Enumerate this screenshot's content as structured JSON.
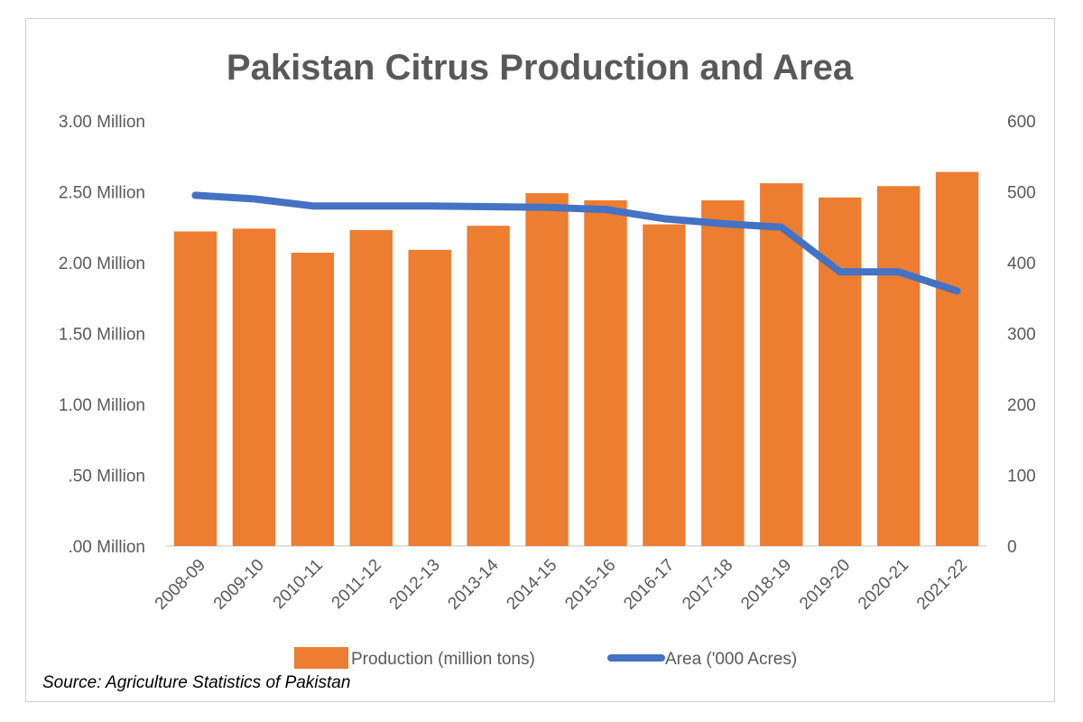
{
  "chart_data": {
    "type": "bar",
    "title": "Pakistan Citrus Production and Area",
    "categories": [
      "2008-09",
      "2009-10",
      "2010-11",
      "2011-12",
      "2012-13",
      "2013-14",
      "2014-15",
      "2015-16",
      "2016-17",
      "2017-18",
      "2018-19",
      "2019-20",
      "2020-21",
      "2021-22"
    ],
    "series": [
      {
        "name": "Production (million tons)",
        "type": "bar",
        "axis": "left",
        "color": "#ED7D31",
        "values": [
          2.22,
          2.24,
          2.07,
          2.23,
          2.09,
          2.26,
          2.49,
          2.44,
          2.27,
          2.44,
          2.56,
          2.46,
          2.54,
          2.64
        ]
      },
      {
        "name": "Area ('000 Acres)",
        "type": "line",
        "axis": "right",
        "color": "#4472C4",
        "values": [
          495,
          490,
          480,
          480,
          480,
          479,
          478,
          475,
          462,
          455,
          450,
          387,
          387,
          360
        ]
      }
    ],
    "y_left": {
      "min": 0,
      "max": 3,
      "ticks": [
        0,
        0.5,
        1,
        1.5,
        2,
        2.5,
        3
      ],
      "tick_labels": [
        ".00 Million",
        ".50 Million",
        "1.00 Million",
        "1.50 Million",
        "2.00 Million",
        "2.50 Million",
        "3.00 Million"
      ]
    },
    "y_right": {
      "min": 0,
      "max": 600,
      "ticks": [
        0,
        100,
        200,
        300,
        400,
        500,
        600
      ],
      "tick_labels": [
        "0",
        "100",
        "200",
        "300",
        "400",
        "500",
        "600"
      ]
    },
    "grid": false,
    "legend_position": "bottom"
  },
  "source_text": "Source: Agriculture Statistics of Pakistan"
}
